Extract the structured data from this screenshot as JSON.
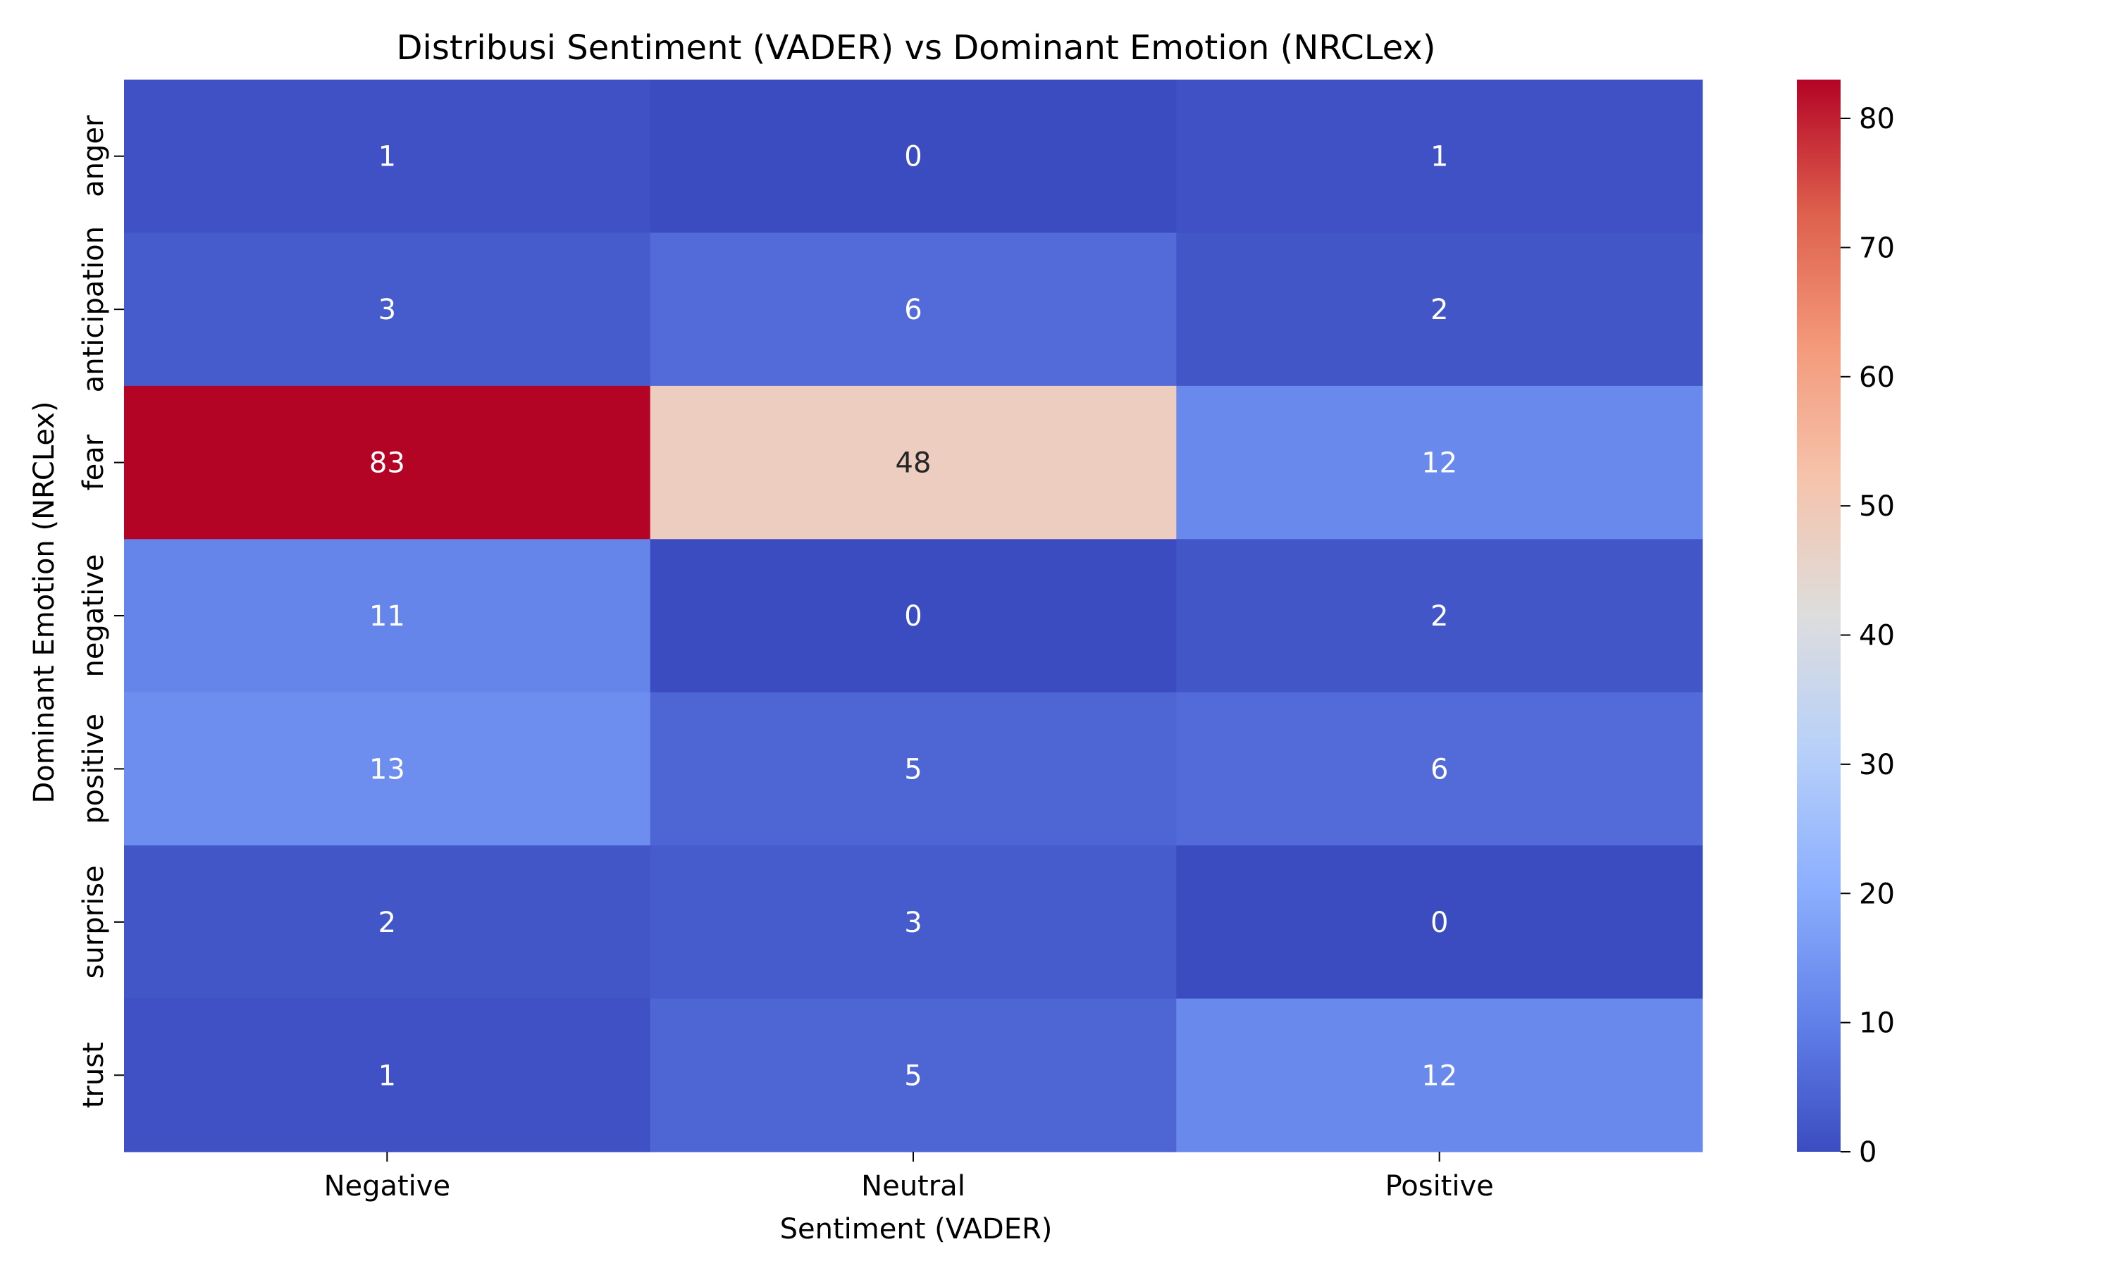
{
  "chart_data": {
    "type": "heatmap",
    "title": "Distribusi Sentiment (VADER) vs Dominant Emotion (NRCLex)",
    "xlabel": "Sentiment (VADER)",
    "ylabel": "Dominant Emotion (NRCLex)",
    "x_categories": [
      "Negative",
      "Neutral",
      "Positive"
    ],
    "y_categories": [
      "anger",
      "anticipation",
      "fear",
      "negative",
      "positive",
      "surprise",
      "trust"
    ],
    "values": [
      [
        1,
        0,
        1
      ],
      [
        3,
        6,
        2
      ],
      [
        83,
        48,
        12
      ],
      [
        11,
        0,
        2
      ],
      [
        13,
        5,
        6
      ],
      [
        2,
        3,
        0
      ],
      [
        1,
        5,
        12
      ]
    ],
    "colormap": "coolwarm",
    "colorbar": {
      "range": [
        0,
        83
      ],
      "ticks": [
        0,
        10,
        20,
        30,
        40,
        50,
        60,
        70,
        80
      ]
    },
    "annotations": true
  }
}
